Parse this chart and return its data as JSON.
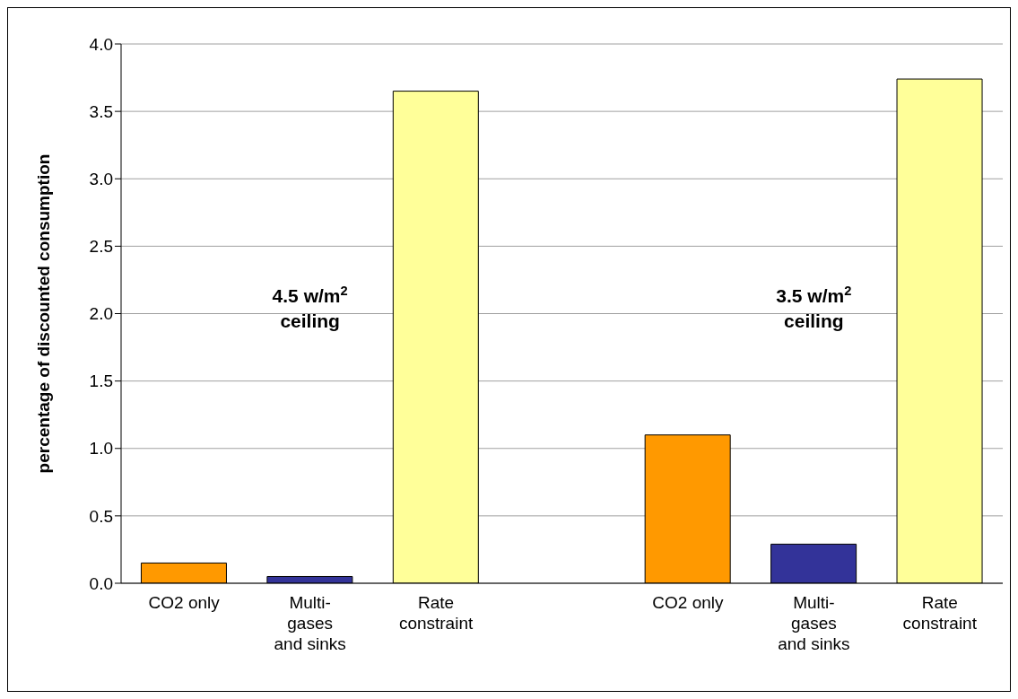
{
  "chart_data": {
    "type": "bar",
    "ylabel": "percentage of discounted consumption",
    "categories": [
      "CO2 only",
      "Multi-gases and sinks",
      "Rate constraint",
      null,
      "CO2 only",
      "Multi-gases and sinks",
      "Rate constraint"
    ],
    "values": [
      0.15,
      0.05,
      3.65,
      null,
      1.1,
      0.29,
      3.74
    ],
    "colors": [
      "#ff9900",
      "#333399",
      "#ffff99",
      null,
      "#ff9900",
      "#333399",
      "#ffff99"
    ],
    "ylim": [
      0,
      4
    ],
    "yticks": [
      {
        "value": 0,
        "label": "0.0"
      },
      {
        "value": 0.5,
        "label": "0.5"
      },
      {
        "value": 1,
        "label": "1.0"
      },
      {
        "value": 1.5,
        "label": "1.5"
      },
      {
        "value": 2,
        "label": "2.0"
      },
      {
        "value": 2.5,
        "label": "2.5"
      },
      {
        "value": 3,
        "label": "3.0"
      },
      {
        "value": 3.5,
        "label": "3.5"
      },
      {
        "value": 4,
        "label": "4.0"
      }
    ],
    "grid": "y",
    "legend": false,
    "annotations": [
      "4.5 w/m$^{2}$ ceiling",
      "3.5 w/m$^{2}$ ceiling"
    ]
  }
}
